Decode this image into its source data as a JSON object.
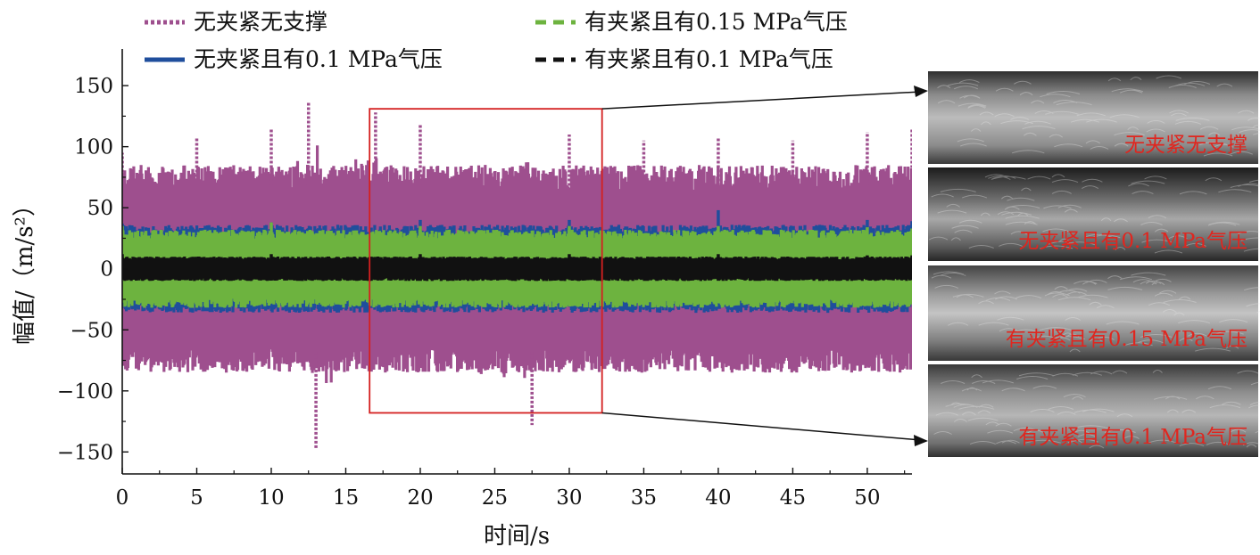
{
  "chart_data": {
    "type": "line",
    "xlabel": "时间/s",
    "ylabel": "幅值/（m/s²）",
    "xlim": [
      0,
      53
    ],
    "ylim": [
      -168,
      180
    ],
    "x_ticks": [
      0,
      5,
      10,
      15,
      20,
      25,
      30,
      35,
      40,
      45,
      50
    ],
    "y_ticks": [
      150,
      100,
      50,
      0,
      -50,
      -100,
      -150
    ],
    "legend_position": "top",
    "series": [
      {
        "name": "无夹紧无支撑",
        "color": "#9e4f8e",
        "line_style": "dotted",
        "amplitude_typical": 85,
        "peak_envelope": [
          [
            0,
            95
          ],
          [
            5,
            108
          ],
          [
            10,
            115
          ],
          [
            12.5,
            136
          ],
          [
            13,
            -147
          ],
          [
            17,
            128
          ],
          [
            20,
            118
          ],
          [
            27.5,
            -128
          ],
          [
            30,
            110
          ],
          [
            35,
            105
          ],
          [
            40,
            108
          ],
          [
            45,
            105
          ],
          [
            50,
            112
          ],
          [
            53,
            115
          ]
        ]
      },
      {
        "name": "无夹紧且有0.1 MPa气压",
        "color": "#1f4e9c",
        "line_style": "solid",
        "amplitude_typical": 36,
        "peak_envelope": [
          [
            0,
            37
          ],
          [
            10,
            38
          ],
          [
            20,
            40
          ],
          [
            30,
            40
          ],
          [
            40,
            48
          ],
          [
            50,
            40
          ],
          [
            53,
            39
          ]
        ]
      },
      {
        "name": "有夹紧且有0.15 MPa气压",
        "color": "#6db33f",
        "line_style": "dashed",
        "amplitude_typical": 32,
        "peak_envelope": [
          [
            0,
            35
          ],
          [
            10,
            38
          ],
          [
            20,
            35
          ],
          [
            30,
            35
          ],
          [
            40,
            35
          ],
          [
            50,
            34
          ],
          [
            53,
            33
          ]
        ]
      },
      {
        "name": "有夹紧且有0.1 MPa气压",
        "color": "#111111",
        "line_style": "dashed",
        "amplitude_typical": 10,
        "peak_envelope": [
          [
            0,
            12
          ],
          [
            10,
            12
          ],
          [
            20,
            12
          ],
          [
            30,
            12
          ],
          [
            40,
            12
          ],
          [
            50,
            11
          ],
          [
            53,
            11
          ]
        ]
      }
    ],
    "zoom_box": {
      "x_range": [
        16.6,
        32.2
      ],
      "y_range": [
        -118,
        131
      ],
      "color": "#d42020"
    },
    "photo_labels": [
      "无夹紧无支撑",
      "无夹紧且有0.1 MPa气压",
      "有夹紧且有0.15 MPa气压",
      "有夹紧且有0.1 MPa气压"
    ],
    "photo_label_color": "#e0261f"
  }
}
